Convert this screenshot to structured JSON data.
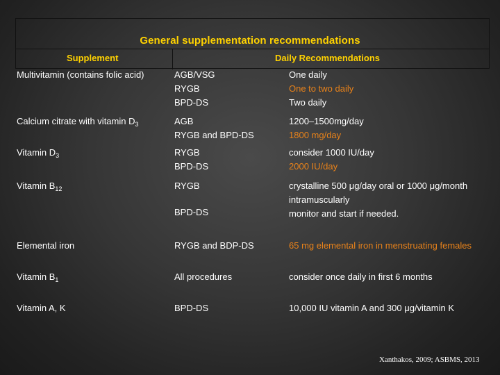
{
  "title": "General supplementation recommendations",
  "headers": {
    "supplement": "Supplement",
    "daily": "Daily Recommendations"
  },
  "rows": [
    {
      "supplement": "Multivitamin (contains folic acid)",
      "procedures": [
        "AGB/VSG",
        "RYGB",
        "BPD-DS"
      ],
      "recommendations": [
        "One daily",
        "One to two daily",
        "Two daily"
      ]
    },
    {
      "supplement": "Calcium citrate with vitamin D",
      "supplement_sub": "3",
      "procedures": [
        "AGB",
        "RYGB and BPD-DS"
      ],
      "recommendations": [
        "1200–1500mg/day",
        "1800 mg/day"
      ]
    },
    {
      "supplement": "Vitamin D",
      "supplement_sub": "3",
      "procedures": [
        "RYGB",
        "BPD-DS"
      ],
      "recommendations": [
        "consider 1000 IU/day",
        "2000 IU/day"
      ]
    },
    {
      "supplement": "Vitamin B",
      "supplement_sub": "12",
      "procedures": [
        "RYGB",
        "BPD-DS"
      ],
      "recommendations": [
        "crystalline 500 μg/day oral or 1000 μg/month",
        "intramuscularly",
        "monitor and start if needed."
      ]
    },
    {
      "supplement": "Elemental iron",
      "procedures": [
        "RYGB and BDP-DS"
      ],
      "recommendations": [
        "65 mg elemental iron in menstruating females"
      ]
    },
    {
      "supplement": "Vitamin B",
      "supplement_sub": "1",
      "procedures": [
        "All procedures"
      ],
      "recommendations": [
        "consider once daily in first 6 months"
      ]
    },
    {
      "supplement": "Vitamin A, K",
      "procedures": [
        "BPD-DS"
      ],
      "recommendations": [
        "10,000 IU vitamin A and 300 μg/vitamin K"
      ]
    }
  ],
  "citation": "Xanthakos, 2009; ASBMS, 2013",
  "colors": {
    "heading": "#ffd200",
    "highlight": "#e8821a",
    "text": "#ffffff"
  }
}
